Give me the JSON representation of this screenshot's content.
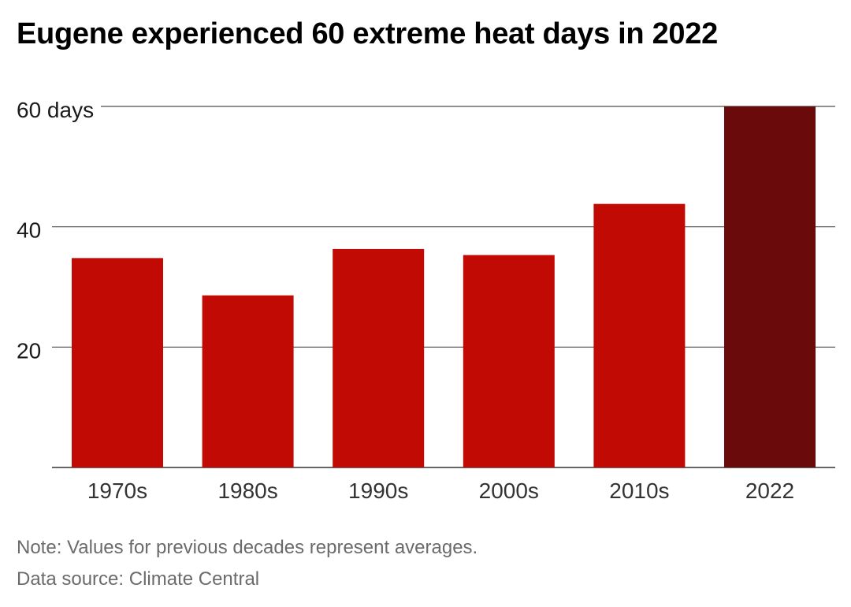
{
  "chart_data": {
    "type": "bar",
    "title": "Eugene experienced 60 extreme heat days in 2022",
    "categories": [
      "1970s",
      "1980s",
      "1990s",
      "2000s",
      "2010s",
      "2022"
    ],
    "values": [
      34.8,
      28.6,
      36.3,
      35.3,
      43.8,
      60
    ],
    "ylim": [
      0,
      60
    ],
    "yticks": [
      {
        "value": 20,
        "label": "20"
      },
      {
        "value": 40,
        "label": "40"
      },
      {
        "value": 60,
        "label": "60 days"
      }
    ],
    "grid": true,
    "colors": {
      "default": "#c20a05",
      "highlight": "#6b0a0b"
    },
    "highlight_category": "2022"
  },
  "footer": {
    "note": "Note: Values for previous decades represent averages.",
    "source": "Data source: Climate Central"
  }
}
